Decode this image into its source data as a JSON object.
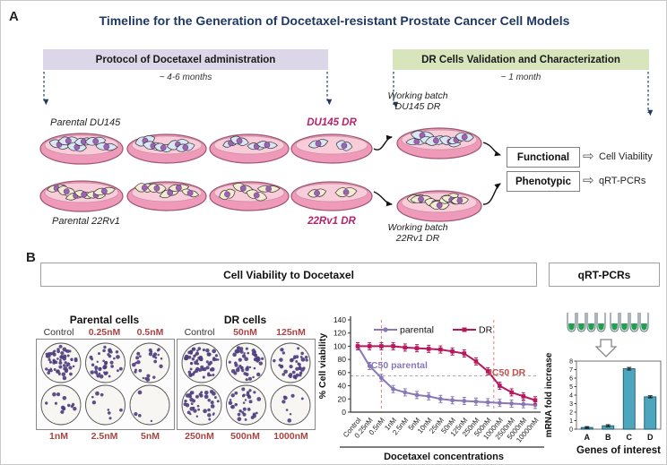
{
  "figure": {
    "panel_a_label": "A",
    "panel_b_label": "B",
    "title": "Timeline for the Generation of Docetaxel-resistant Prostate Cancer Cell Models",
    "title_color": "#1f3864"
  },
  "timeline": {
    "protocol_bar": {
      "label": "Protocol of Docetaxel administration",
      "duration": "~ 4-6 months",
      "bg_color": "#dcd6e9"
    },
    "validation_bar": {
      "label": "DR Cells Validation and Characterization",
      "duration": "~ 1 month",
      "bg_color": "#d7e4bc"
    },
    "cell_lines": {
      "parental_du145": "Parental DU145",
      "du145_dr": "DU145 DR",
      "working_batch_du145": [
        "Working batch",
        "DU145 DR"
      ],
      "parental_22rv1": "Parental 22Rv1",
      "rv1_dr": "22Rv1 DR",
      "working_batch_22rv1": [
        "Working batch",
        "22Rv1 DR"
      ],
      "dr_label_color": "#b6246c"
    },
    "outcomes": {
      "functional": "Functional",
      "functional_result": "Cell Viability",
      "phenotypic": "Phenotypic",
      "phenotypic_result": "qRT-PCRs",
      "arrow_glyph": "⇨"
    }
  },
  "panel_b": {
    "viability_header": "Cell Viability to Docetaxel",
    "qrtpcr_header": "qRT-PCRs",
    "conc_label_color": "#a94442",
    "parental_assay": {
      "title": "Parental cells",
      "top_labels": [
        "Control",
        "0.25nM",
        "0.5nM"
      ],
      "bottom_labels": [
        "1nM",
        "2.5nM",
        "5nM"
      ],
      "colony_counts": [
        60,
        38,
        26,
        13,
        8,
        4
      ]
    },
    "dr_assay": {
      "title": "DR cells",
      "top_labels": [
        "Control",
        "50nM",
        "125nM"
      ],
      "bottom_labels": [
        "250nM",
        "500nM",
        "1000nM"
      ],
      "colony_counts": [
        60,
        48,
        40,
        38,
        32,
        8
      ]
    }
  },
  "chart_data": [
    {
      "type": "line",
      "title": "",
      "xlabel": "Docetaxel concentrations",
      "ylabel": "% Cell viability",
      "ylim": [
        0,
        140
      ],
      "yticks": [
        0,
        20,
        40,
        60,
        80,
        100,
        120,
        140
      ],
      "categories": [
        "Control",
        "0.25nM",
        "0.5nM",
        "1nM",
        "2.5nM",
        "5nM",
        "10nM",
        "25nM",
        "50nM",
        "125nM",
        "250nM",
        "500nM",
        "1000nM",
        "2500nM",
        "5000nM",
        "10000nM"
      ],
      "series": [
        {
          "name": "parental",
          "color": "#8878b8",
          "marker": "circle",
          "values": [
            100,
            70,
            52,
            35,
            30,
            26,
            24,
            20,
            18,
            17,
            16,
            15,
            14,
            13,
            12,
            11
          ]
        },
        {
          "name": "DR",
          "color": "#b5195c",
          "marker": "square",
          "values": [
            100,
            100,
            100,
            100,
            98,
            97,
            96,
            95,
            92,
            89,
            77,
            62,
            40,
            30,
            24,
            18
          ]
        }
      ],
      "annotations": [
        {
          "text": "IC50 parental",
          "color": "#8878b8"
        },
        {
          "text": "IC50 DR",
          "color": "#c0504d"
        }
      ],
      "reference_lines": {
        "h_dashed_value": 55,
        "ic50_parental_at": "0.5nM",
        "ic50_dr_between": [
          "500nM",
          "1000nM"
        ]
      },
      "legend_position": "top",
      "grid": false
    },
    {
      "type": "bar",
      "xlabel": "Genes of interest",
      "ylabel": "mRNA fold increase",
      "ylim": [
        0,
        8
      ],
      "yticks": [
        0,
        1,
        2,
        3,
        4,
        5,
        6,
        7,
        8
      ],
      "categories": [
        "A",
        "B",
        "C",
        "D"
      ],
      "values": [
        0.2,
        0.4,
        7.1,
        3.8
      ],
      "errors": [
        0.1,
        0.12,
        0.15,
        0.12
      ],
      "bar_color": "#4da6bd"
    }
  ]
}
